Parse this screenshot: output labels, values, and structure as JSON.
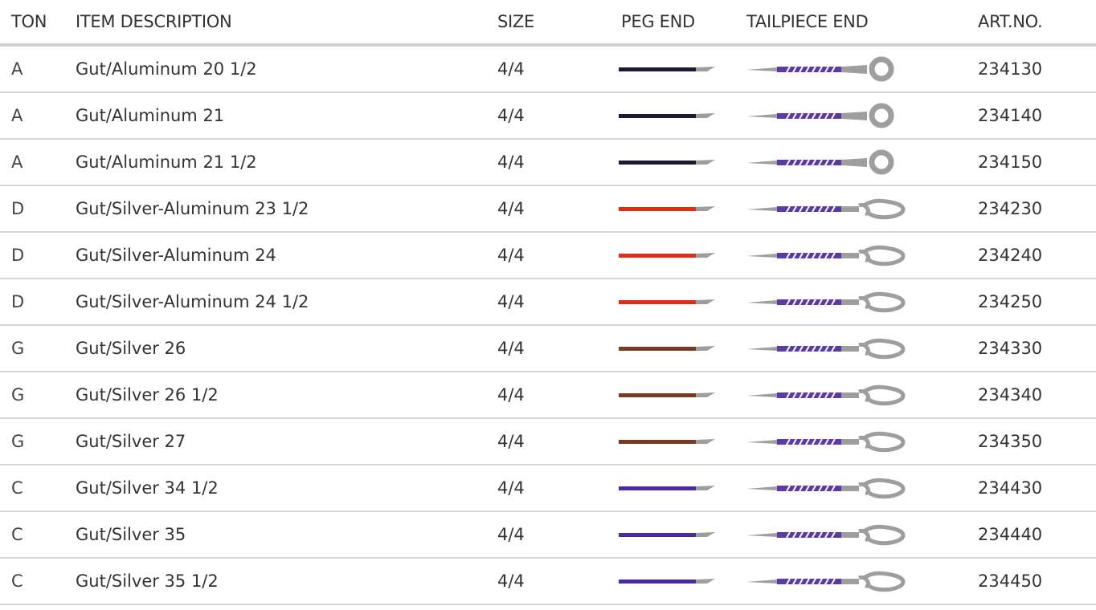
{
  "headers": {
    "ton": "TON",
    "description": "ITEM DESCRIPTION",
    "size": "SIZE",
    "peg_end": "PEG END",
    "tailpiece_end": "TAILPIECE END",
    "art_no": "ART.NO."
  },
  "colors": {
    "peg_a": "#1a1a33",
    "peg_d": "#e02d14",
    "peg_g": "#7a3a22",
    "peg_c": "#4b2aa8",
    "wrap": "#5b3aa6",
    "metal": "#9e9e9e"
  },
  "rows": [
    {
      "ton": "A",
      "description": "Gut/Aluminum 20 1/2",
      "size": "4/4",
      "peg_color": "#1a1a33",
      "tail_type": "ring",
      "art_no": "234130"
    },
    {
      "ton": "A",
      "description": "Gut/Aluminum 21",
      "size": "4/4",
      "peg_color": "#1a1a33",
      "tail_type": "ring",
      "art_no": "234140"
    },
    {
      "ton": "A",
      "description": "Gut/Aluminum 21 1/2",
      "size": "4/4",
      "peg_color": "#1a1a33",
      "tail_type": "ring",
      "art_no": "234150"
    },
    {
      "ton": "D",
      "description": "Gut/Silver-Aluminum 23 1/2",
      "size": "4/4",
      "peg_color": "#e02d14",
      "tail_type": "knot",
      "art_no": "234230"
    },
    {
      "ton": "D",
      "description": "Gut/Silver-Aluminum 24",
      "size": "4/4",
      "peg_color": "#e02d14",
      "tail_type": "knot",
      "art_no": "234240"
    },
    {
      "ton": "D",
      "description": "Gut/Silver-Aluminum 24 1/2",
      "size": "4/4",
      "peg_color": "#e02d14",
      "tail_type": "knot",
      "art_no": "234250"
    },
    {
      "ton": "G",
      "description": "Gut/Silver 26",
      "size": "4/4",
      "peg_color": "#7a3a22",
      "tail_type": "knot",
      "art_no": "234330"
    },
    {
      "ton": "G",
      "description": "Gut/Silver 26 1/2",
      "size": "4/4",
      "peg_color": "#7a3a22",
      "tail_type": "knot",
      "art_no": "234340"
    },
    {
      "ton": "G",
      "description": "Gut/Silver 27",
      "size": "4/4",
      "peg_color": "#7a3a22",
      "tail_type": "knot",
      "art_no": "234350"
    },
    {
      "ton": "C",
      "description": "Gut/Silver 34 1/2",
      "size": "4/4",
      "peg_color": "#4b2aa8",
      "tail_type": "knot",
      "art_no": "234430"
    },
    {
      "ton": "C",
      "description": "Gut/Silver 35",
      "size": "4/4",
      "peg_color": "#4b2aa8",
      "tail_type": "knot",
      "art_no": "234440"
    },
    {
      "ton": "C",
      "description": "Gut/Silver 35 1/2",
      "size": "4/4",
      "peg_color": "#4b2aa8",
      "tail_type": "knot",
      "art_no": "234450"
    }
  ]
}
